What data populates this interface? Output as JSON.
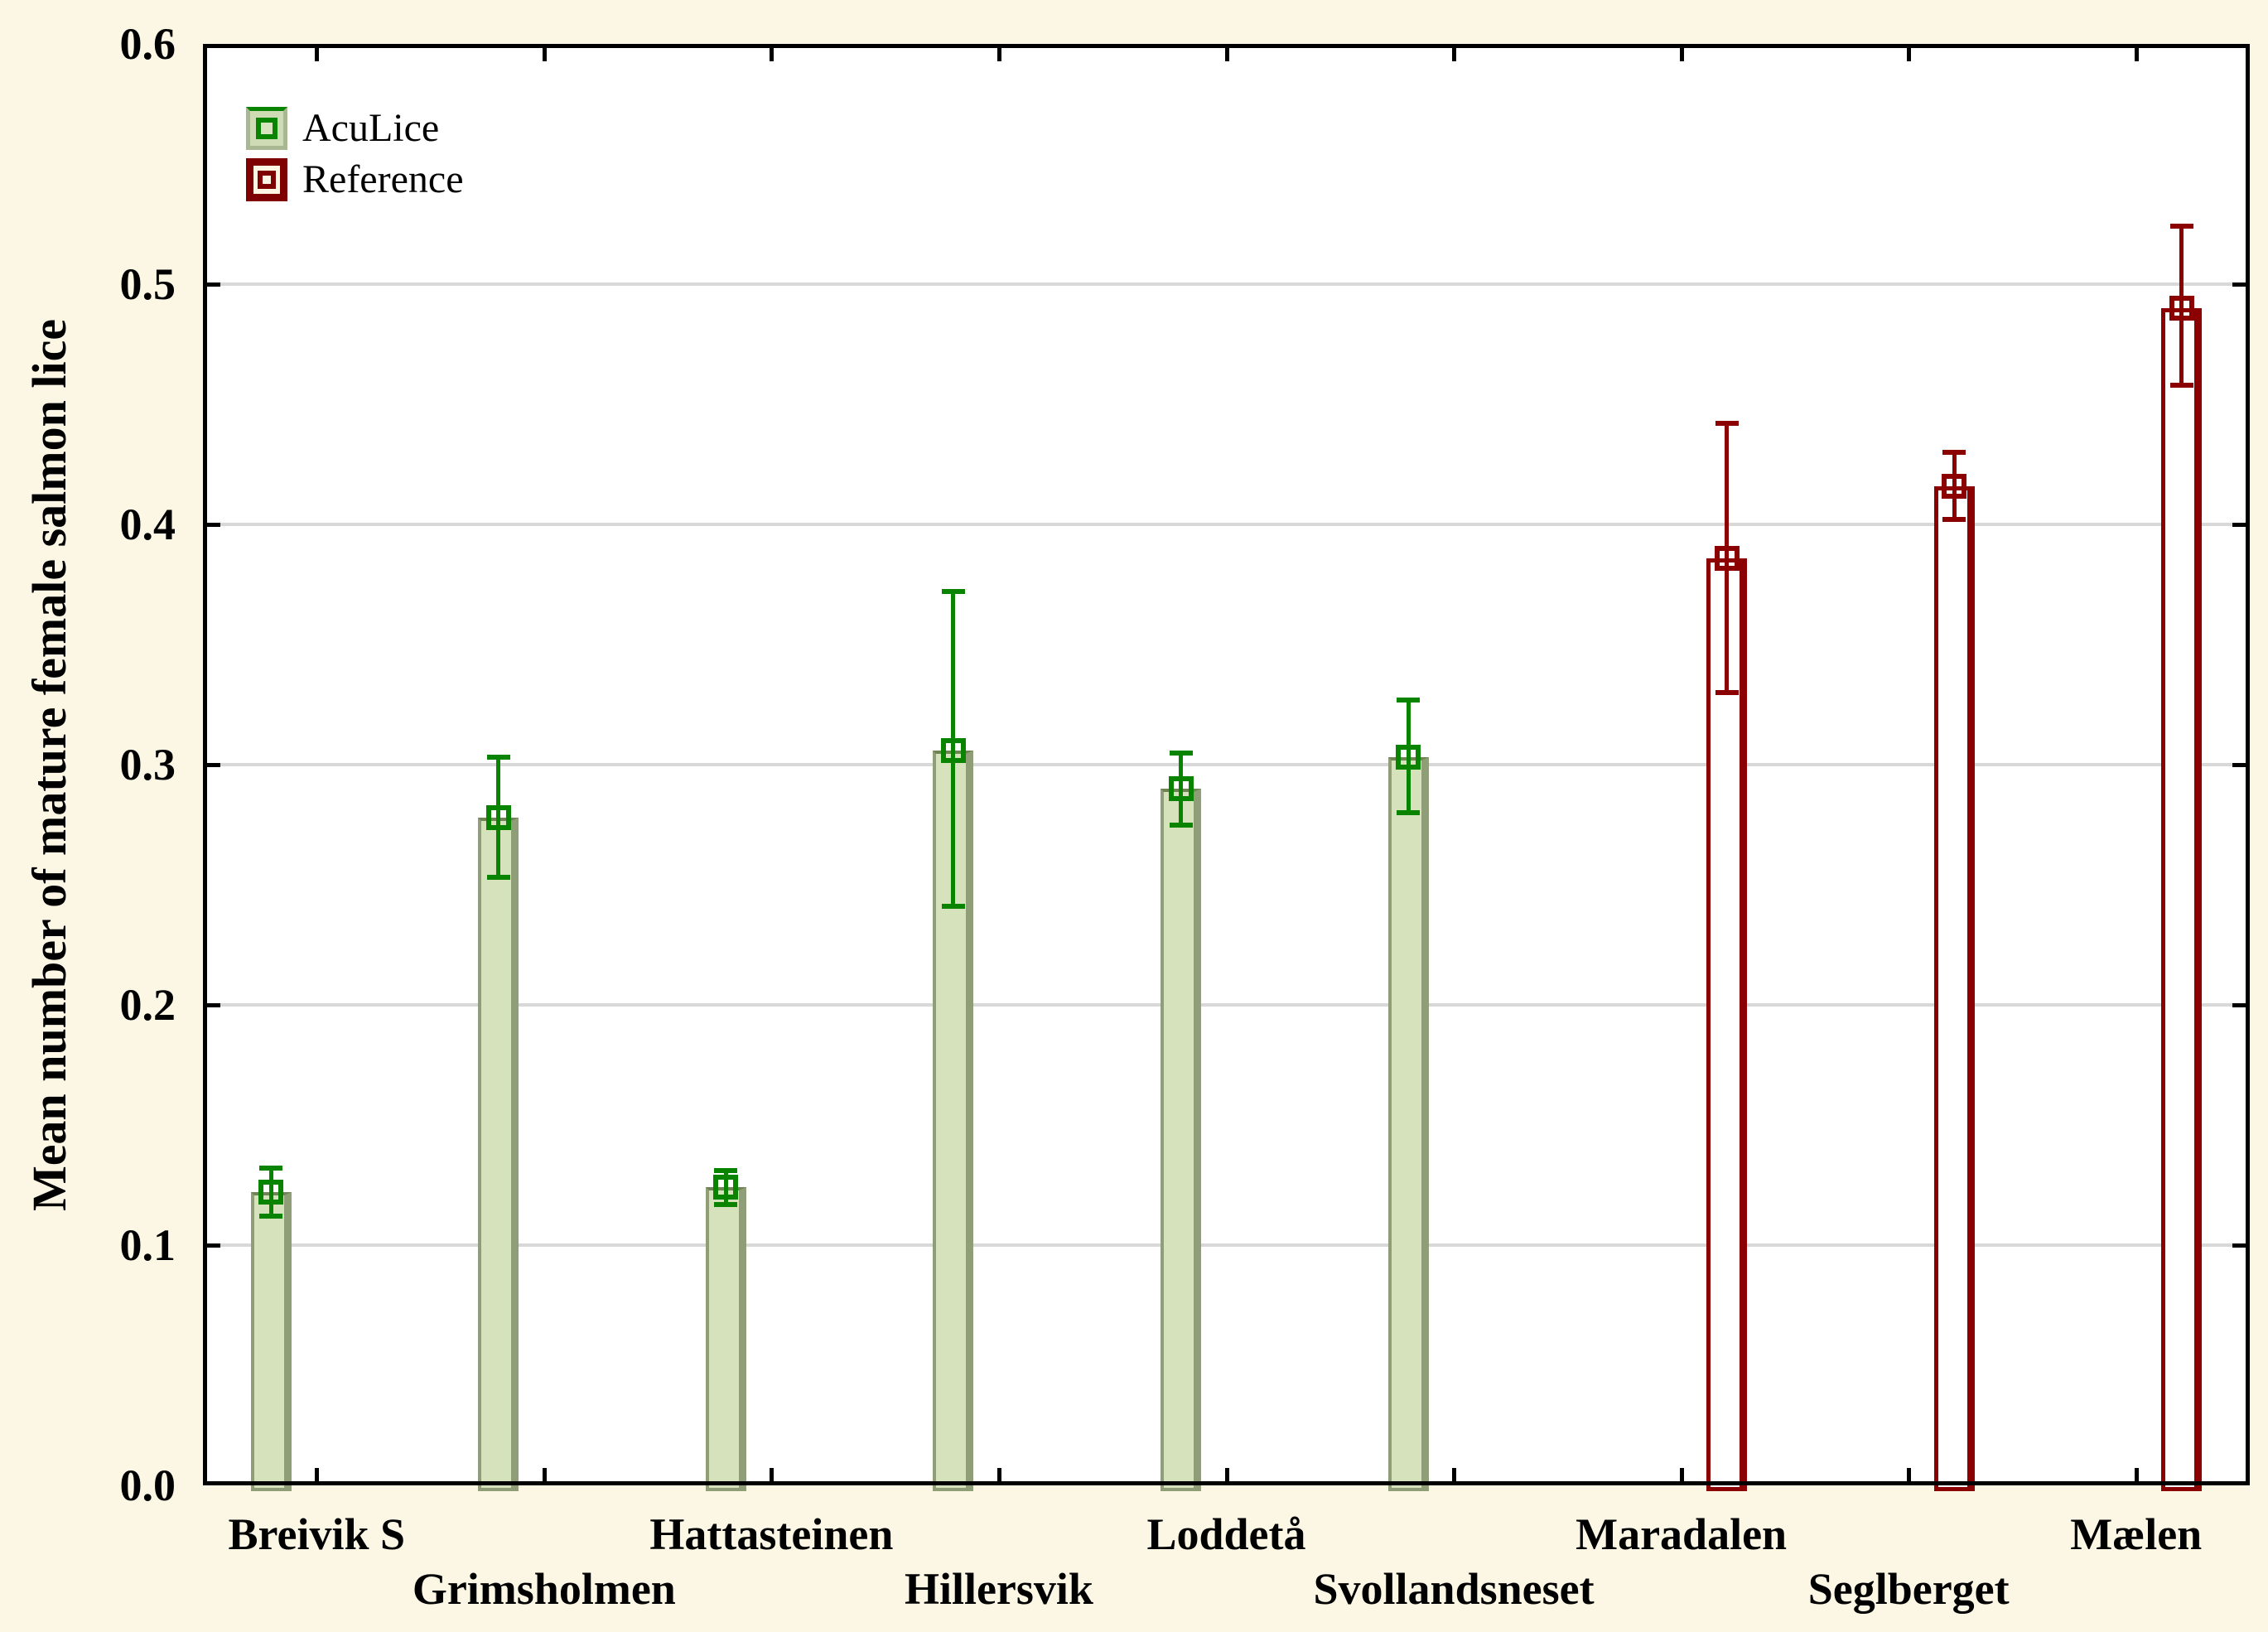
{
  "chart_data": {
    "type": "bar",
    "title": "",
    "xlabel": "",
    "ylabel": "Mean number of mature female salmon lice",
    "ylim": [
      0.0,
      0.6
    ],
    "yticks": [
      0.0,
      0.1,
      0.2,
      0.3,
      0.4,
      0.5,
      0.6
    ],
    "ytick_labels": [
      "0.0",
      "0.1",
      "0.2",
      "0.3",
      "0.4",
      "0.5",
      "0.6"
    ],
    "grid": true,
    "gridlines_at": [
      0.1,
      0.2,
      0.3,
      0.4,
      0.5
    ],
    "legend_position": "top-left-inside",
    "plot_background": "#ffffff",
    "page_background": "#fcf7e5",
    "gridline_color": "#d8d8d8",
    "frame_color": "#000000",
    "categories": [
      "Breivik S",
      "Grimsholmen",
      "Hattasteinen",
      "Hillersvik",
      "Loddetå",
      "Svollandsneset",
      "Maradalen",
      "Seglberget",
      "Mælen"
    ],
    "series": [
      {
        "name": "AcuLice",
        "fill_color": "#d6e2bc",
        "border_color": "#8f9e76",
        "error_color": "#098400",
        "values": [
          0.122,
          0.278,
          0.124,
          0.306,
          0.29,
          0.303,
          null,
          null,
          null
        ],
        "error_low": [
          0.112,
          0.253,
          0.117,
          0.241,
          0.275,
          0.28,
          null,
          null,
          null
        ],
        "error_high": [
          0.132,
          0.303,
          0.131,
          0.372,
          0.305,
          0.327,
          null,
          null,
          null
        ]
      },
      {
        "name": "Reference",
        "fill_color": "#ffffff",
        "border_color": "#8b0000",
        "error_color": "#8b0000",
        "values": [
          null,
          null,
          null,
          null,
          null,
          null,
          0.386,
          0.416,
          0.49
        ],
        "error_low": [
          null,
          null,
          null,
          null,
          null,
          null,
          0.33,
          0.402,
          0.458
        ],
        "error_high": [
          null,
          null,
          null,
          null,
          null,
          null,
          0.442,
          0.43,
          0.524
        ]
      }
    ]
  }
}
